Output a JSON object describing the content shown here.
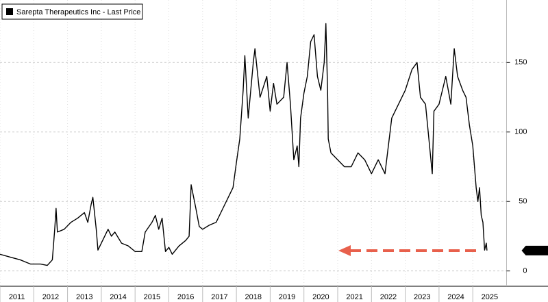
{
  "chart_data": {
    "type": "line",
    "legend": "Sarepta Therapeutics Inc - Last Price",
    "series": [
      {
        "name": "Sarepta Therapeutics Inc - Last Price",
        "color": "#000000",
        "x": [
          2011.0,
          2011.3,
          2011.6,
          2011.9,
          2012.2,
          2012.4,
          2012.55,
          2012.62,
          2012.66,
          2012.7,
          2012.9,
          2013.1,
          2013.3,
          2013.5,
          2013.6,
          2013.7,
          2013.75,
          2013.85,
          2013.9,
          2014.0,
          2014.2,
          2014.3,
          2014.4,
          2014.6,
          2014.8,
          2015.0,
          2015.2,
          2015.3,
          2015.5,
          2015.6,
          2015.7,
          2015.8,
          2015.9,
          2016.0,
          2016.1,
          2016.3,
          2016.5,
          2016.6,
          2016.66,
          2016.8,
          2016.9,
          2017.0,
          2017.2,
          2017.4,
          2017.6,
          2017.8,
          2017.9,
          2018.0,
          2018.1,
          2018.2,
          2018.25,
          2018.35,
          2018.5,
          2018.55,
          2018.7,
          2018.9,
          2019.0,
          2019.1,
          2019.2,
          2019.4,
          2019.5,
          2019.6,
          2019.7,
          2019.8,
          2019.85,
          2019.9,
          2020.0,
          2020.1,
          2020.2,
          2020.3,
          2020.4,
          2020.5,
          2020.6,
          2020.65,
          2020.7,
          2020.72,
          2020.8,
          2021.0,
          2021.2,
          2021.4,
          2021.6,
          2021.8,
          2022.0,
          2022.2,
          2022.4,
          2022.6,
          2022.8,
          2023.0,
          2023.2,
          2023.35,
          2023.45,
          2023.6,
          2023.8,
          2023.85,
          2024.0,
          2024.1,
          2024.2,
          2024.35,
          2024.45,
          2024.55,
          2024.7,
          2024.8,
          2024.9,
          2025.0,
          2025.1,
          2025.15,
          2025.2,
          2025.25,
          2025.3,
          2025.35,
          2025.4,
          2025.42
        ],
        "values": [
          12,
          10,
          8,
          5,
          5,
          4,
          8,
          30,
          45,
          28,
          30,
          35,
          38,
          42,
          35,
          48,
          53,
          30,
          15,
          20,
          30,
          25,
          28,
          20,
          18,
          14,
          14,
          28,
          35,
          40,
          30,
          38,
          14,
          17,
          12,
          18,
          22,
          25,
          62,
          45,
          32,
          30,
          33,
          35,
          45,
          55,
          60,
          78,
          95,
          130,
          155,
          110,
          150,
          160,
          125,
          140,
          115,
          135,
          120,
          125,
          150,
          120,
          80,
          90,
          75,
          110,
          128,
          140,
          165,
          170,
          140,
          130,
          150,
          178,
          130,
          95,
          85,
          80,
          75,
          75,
          85,
          80,
          70,
          80,
          70,
          110,
          120,
          130,
          145,
          150,
          125,
          120,
          70,
          115,
          120,
          130,
          140,
          120,
          160,
          140,
          130,
          125,
          105,
          90,
          60,
          50,
          60,
          40,
          35,
          15,
          20,
          14.695
        ]
      }
    ],
    "xlim": [
      2011,
      2026
    ],
    "xticks": [
      2011,
      2012,
      2013,
      2014,
      2015,
      2016,
      2017,
      2018,
      2019,
      2020,
      2021,
      2022,
      2023,
      2024,
      2025
    ],
    "ylim": [
      -11,
      195
    ],
    "yticks": [
      0,
      50,
      100,
      150
    ],
    "grid": true
  }
}
